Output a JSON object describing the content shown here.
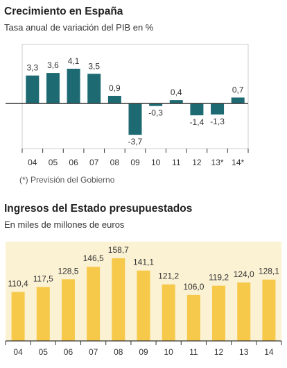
{
  "chart_data": [
    {
      "type": "bar",
      "title": "Crecimiento en España",
      "subtitle": "Tasa anual de variación del PIB en %",
      "categories": [
        "04",
        "05",
        "06",
        "07",
        "08",
        "09",
        "10",
        "11",
        "12",
        "13*",
        "14*"
      ],
      "values": [
        3.3,
        3.6,
        4.1,
        3.5,
        0.9,
        -3.7,
        -0.3,
        0.4,
        -1.4,
        -1.3,
        0.7
      ],
      "value_labels": [
        "3,3",
        "3,6",
        "4,1",
        "3,5",
        "0,9",
        "-3,7",
        "-0,3",
        "0,4",
        "-1,4",
        "-1,3",
        "0,7"
      ],
      "note": "(*) Previsión del Gobierno",
      "colors": {
        "positive": "#1d6a73",
        "negative": "#1d6a73",
        "axis": "#333333",
        "frame": "#cccccc"
      },
      "grid": false
    },
    {
      "type": "bar",
      "title": "Ingresos del Estado presupuestados",
      "subtitle": "En miles de millones de euros",
      "categories": [
        "04",
        "05",
        "06",
        "07",
        "08",
        "09",
        "10",
        "11",
        "12",
        "13",
        "14"
      ],
      "values": [
        110.4,
        117.5,
        128.5,
        146.5,
        158.7,
        141.1,
        121.2,
        106.0,
        119.2,
        124.0,
        128.1
      ],
      "value_labels": [
        "110,4",
        "117,5",
        "128,5",
        "146,5",
        "158,7",
        "141,1",
        "121,2",
        "106,0",
        "119,2",
        "124,0",
        "128,1"
      ],
      "colors": {
        "bar": "#f6c94a",
        "background": "#fbf1d3",
        "axis": "#333333"
      },
      "grid": false
    }
  ]
}
